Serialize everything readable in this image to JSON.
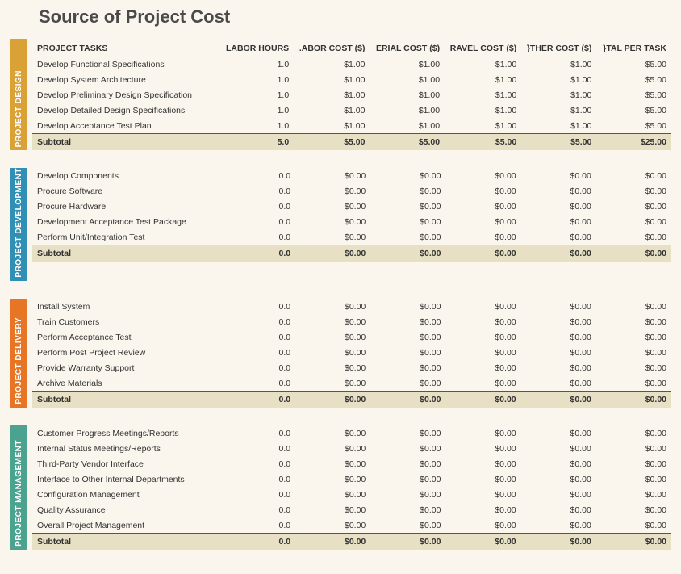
{
  "title": "Source of Project Cost",
  "headers": [
    "PROJECT TASKS",
    "LABOR HOURS",
    ".ABOR COST ($)",
    "ERIAL COST ($)",
    "RAVEL COST ($)",
    "}THER COST ($)",
    "}TAL PER TASK"
  ],
  "subtotal_label": "Subtotal",
  "colors": {
    "page_bg": "#faf6ed",
    "subtotal_bg": "#e7e0c4",
    "rule": "#555555"
  },
  "sections": [
    {
      "id": "project-design",
      "label": "PROJECT DESIGN",
      "label_bg": "#d9a136",
      "show_headers": true,
      "rows": [
        {
          "task": "Develop Functional Specifications",
          "hours": "1.0",
          "labor": "$1.00",
          "material": "$1.00",
          "travel": "$1.00",
          "other": "$1.00",
          "total": "$5.00"
        },
        {
          "task": "Develop System Architecture",
          "hours": "1.0",
          "labor": "$1.00",
          "material": "$1.00",
          "travel": "$1.00",
          "other": "$1.00",
          "total": "$5.00"
        },
        {
          "task": "Develop Preliminary Design Specification",
          "hours": "1.0",
          "labor": "$1.00",
          "material": "$1.00",
          "travel": "$1.00",
          "other": "$1.00",
          "total": "$5.00"
        },
        {
          "task": "Develop Detailed Design Specifications",
          "hours": "1.0",
          "labor": "$1.00",
          "material": "$1.00",
          "travel": "$1.00",
          "other": "$1.00",
          "total": "$5.00"
        },
        {
          "task": "Develop Acceptance Test Plan",
          "hours": "1.0",
          "labor": "$1.00",
          "material": "$1.00",
          "travel": "$1.00",
          "other": "$1.00",
          "total": "$5.00"
        }
      ],
      "subtotal": {
        "hours": "5.0",
        "labor": "$5.00",
        "material": "$5.00",
        "travel": "$5.00",
        "other": "$5.00",
        "total": "$25.00"
      }
    },
    {
      "id": "project-development",
      "label": "PROJECT DEVELOPMENT",
      "label_bg": "#2f8fb5",
      "show_headers": false,
      "rows": [
        {
          "task": "Develop Components",
          "hours": "0.0",
          "labor": "$0.00",
          "material": "$0.00",
          "travel": "$0.00",
          "other": "$0.00",
          "total": "$0.00"
        },
        {
          "task": "Procure Software",
          "hours": "0.0",
          "labor": "$0.00",
          "material": "$0.00",
          "travel": "$0.00",
          "other": "$0.00",
          "total": "$0.00"
        },
        {
          "task": "Procure Hardware",
          "hours": "0.0",
          "labor": "$0.00",
          "material": "$0.00",
          "travel": "$0.00",
          "other": "$0.00",
          "total": "$0.00"
        },
        {
          "task": "Development Acceptance Test Package",
          "hours": "0.0",
          "labor": "$0.00",
          "material": "$0.00",
          "travel": "$0.00",
          "other": "$0.00",
          "total": "$0.00"
        },
        {
          "task": "Perform Unit/Integration Test",
          "hours": "0.0",
          "labor": "$0.00",
          "material": "$0.00",
          "travel": "$0.00",
          "other": "$0.00",
          "total": "$0.00"
        }
      ],
      "subtotal": {
        "hours": "0.0",
        "labor": "$0.00",
        "material": "$0.00",
        "travel": "$0.00",
        "other": "$0.00",
        "total": "$0.00"
      }
    },
    {
      "id": "project-delivery",
      "label": "PROJECT DELIVERY",
      "label_bg": "#e67626",
      "show_headers": false,
      "rows": [
        {
          "task": "Install System",
          "hours": "0.0",
          "labor": "$0.00",
          "material": "$0.00",
          "travel": "$0.00",
          "other": "$0.00",
          "total": "$0.00"
        },
        {
          "task": "Train Customers",
          "hours": "0.0",
          "labor": "$0.00",
          "material": "$0.00",
          "travel": "$0.00",
          "other": "$0.00",
          "total": "$0.00"
        },
        {
          "task": "Perform Acceptance Test",
          "hours": "0.0",
          "labor": "$0.00",
          "material": "$0.00",
          "travel": "$0.00",
          "other": "$0.00",
          "total": "$0.00"
        },
        {
          "task": "Perform Post Project Review",
          "hours": "0.0",
          "labor": "$0.00",
          "material": "$0.00",
          "travel": "$0.00",
          "other": "$0.00",
          "total": "$0.00"
        },
        {
          "task": "Provide Warranty Support",
          "hours": "0.0",
          "labor": "$0.00",
          "material": "$0.00",
          "travel": "$0.00",
          "other": "$0.00",
          "total": "$0.00"
        },
        {
          "task": "Archive Materials",
          "hours": "0.0",
          "labor": "$0.00",
          "material": "$0.00",
          "travel": "$0.00",
          "other": "$0.00",
          "total": "$0.00"
        }
      ],
      "subtotal": {
        "hours": "0.0",
        "labor": "$0.00",
        "material": "$0.00",
        "travel": "$0.00",
        "other": "$0.00",
        "total": "$0.00"
      }
    },
    {
      "id": "project-management",
      "label": "PROJECT MANAGEMENT",
      "label_bg": "#4aa28f",
      "show_headers": false,
      "rows": [
        {
          "task": "Customer Progress Meetings/Reports",
          "hours": "0.0",
          "labor": "$0.00",
          "material": "$0.00",
          "travel": "$0.00",
          "other": "$0.00",
          "total": "$0.00"
        },
        {
          "task": "Internal Status Meetings/Reports",
          "hours": "0.0",
          "labor": "$0.00",
          "material": "$0.00",
          "travel": "$0.00",
          "other": "$0.00",
          "total": "$0.00"
        },
        {
          "task": "Third-Party Vendor Interface",
          "hours": "0.0",
          "labor": "$0.00",
          "material": "$0.00",
          "travel": "$0.00",
          "other": "$0.00",
          "total": "$0.00"
        },
        {
          "task": "Interface to Other Internal Departments",
          "hours": "0.0",
          "labor": "$0.00",
          "material": "$0.00",
          "travel": "$0.00",
          "other": "$0.00",
          "total": "$0.00"
        },
        {
          "task": "Configuration Management",
          "hours": "0.0",
          "labor": "$0.00",
          "material": "$0.00",
          "travel": "$0.00",
          "other": "$0.00",
          "total": "$0.00"
        },
        {
          "task": "Quality Assurance",
          "hours": "0.0",
          "labor": "$0.00",
          "material": "$0.00",
          "travel": "$0.00",
          "other": "$0.00",
          "total": "$0.00"
        },
        {
          "task": "Overall Project Management",
          "hours": "0.0",
          "labor": "$0.00",
          "material": "$0.00",
          "travel": "$0.00",
          "other": "$0.00",
          "total": "$0.00"
        }
      ],
      "subtotal": {
        "hours": "0.0",
        "labor": "$0.00",
        "material": "$0.00",
        "travel": "$0.00",
        "other": "$0.00",
        "total": "$0.00"
      }
    }
  ]
}
